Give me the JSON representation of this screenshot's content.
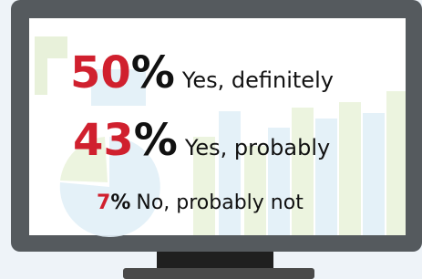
{
  "items": [
    {
      "number": "50",
      "unit": "%",
      "label": "Yes, definitely"
    },
    {
      "number": "43",
      "unit": "%",
      "label": "Yes, probably"
    },
    {
      "number": "7",
      "unit": "%",
      "label": "No, probably not"
    }
  ]
}
